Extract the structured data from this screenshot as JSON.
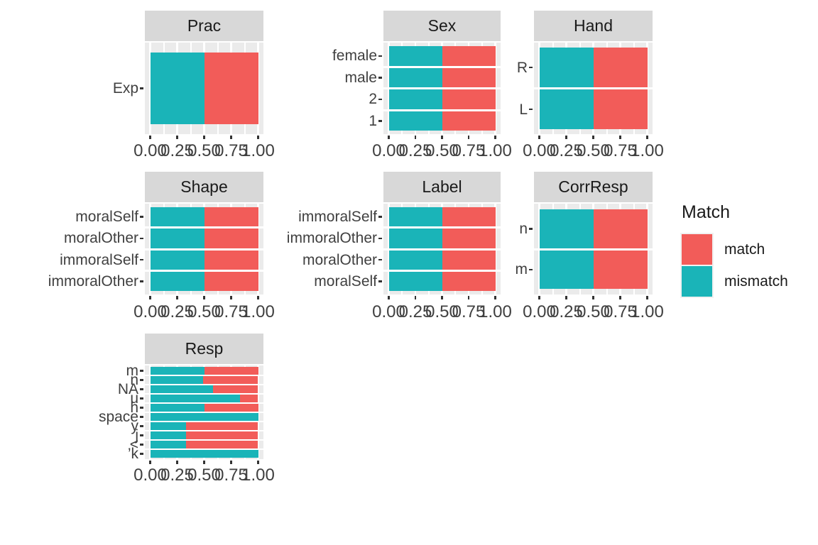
{
  "chart_data": {
    "type": "bar",
    "subtype": "horizontal_stacked_proportion_facets",
    "x_axis": {
      "tick_labels": [
        "0.00",
        "0.25",
        "0.50",
        "0.75",
        "1.00"
      ],
      "tick_values": [
        0,
        0.25,
        0.5,
        0.75,
        1.0
      ],
      "range": [
        0,
        1
      ],
      "grid": "on",
      "minor_tick_values": [
        0.125,
        0.375,
        0.625,
        0.875
      ]
    },
    "legend": {
      "title": "Match",
      "position": "right",
      "entries": [
        {
          "label": "match",
          "color": "#f25c59"
        },
        {
          "label": "mismatch",
          "color": "#1ab4b8"
        }
      ]
    },
    "facets": [
      {
        "title": "Prac",
        "categories": [
          "Exp"
        ],
        "series": [
          {
            "name": "mismatch",
            "values": [
              0.5
            ]
          },
          {
            "name": "match",
            "values": [
              0.5
            ]
          }
        ]
      },
      {
        "title": "Sex",
        "categories": [
          "female",
          "male",
          "2",
          "1"
        ],
        "series": [
          {
            "name": "mismatch",
            "values": [
              0.5,
              0.5,
              0.5,
              0.5
            ]
          },
          {
            "name": "match",
            "values": [
              0.5,
              0.5,
              0.5,
              0.5
            ]
          }
        ]
      },
      {
        "title": "Hand",
        "categories": [
          "R",
          "L"
        ],
        "series": [
          {
            "name": "mismatch",
            "values": [
              0.5,
              0.5
            ]
          },
          {
            "name": "match",
            "values": [
              0.5,
              0.5
            ]
          }
        ]
      },
      {
        "title": "Shape",
        "categories": [
          "moralSelf",
          "moralOther",
          "immoralSelf",
          "immoralOther"
        ],
        "series": [
          {
            "name": "mismatch",
            "values": [
              0.5,
              0.5,
              0.5,
              0.5
            ]
          },
          {
            "name": "match",
            "values": [
              0.5,
              0.5,
              0.5,
              0.5
            ]
          }
        ]
      },
      {
        "title": "Label",
        "categories": [
          "immoralSelf",
          "immoralOther",
          "moralOther",
          "moralSelf"
        ],
        "series": [
          {
            "name": "mismatch",
            "values": [
              0.5,
              0.5,
              0.5,
              0.5
            ]
          },
          {
            "name": "match",
            "values": [
              0.5,
              0.5,
              0.5,
              0.5
            ]
          }
        ]
      },
      {
        "title": "CorrResp",
        "categories": [
          "n",
          "m"
        ],
        "series": [
          {
            "name": "mismatch",
            "values": [
              0.5,
              0.5
            ]
          },
          {
            "name": "match",
            "values": [
              0.5,
              0.5
            ]
          }
        ]
      },
      {
        "title": "Resp",
        "categories": [
          "m",
          "n",
          "NA",
          "u",
          "h",
          "space",
          "y",
          "j",
          "<",
          "’k"
        ],
        "series": [
          {
            "name": "mismatch",
            "values": [
              0.5,
              0.49,
              0.58,
              0.83,
              0.5,
              1.0,
              0.33,
              0.33,
              0.33,
              1.0
            ]
          },
          {
            "name": "match",
            "values": [
              0.5,
              0.51,
              0.42,
              0.17,
              0.5,
              0.0,
              0.67,
              0.67,
              0.67,
              0.0
            ]
          }
        ]
      }
    ],
    "style": {
      "panel_background": "#ebebeb",
      "strip_background": "#d8d8d8",
      "gridline_color": "#ffffff",
      "axis_text_color": "#404040",
      "tick_color": "#333333",
      "match_color": "#f25c59",
      "mismatch_color": "#1ab4b8"
    }
  }
}
